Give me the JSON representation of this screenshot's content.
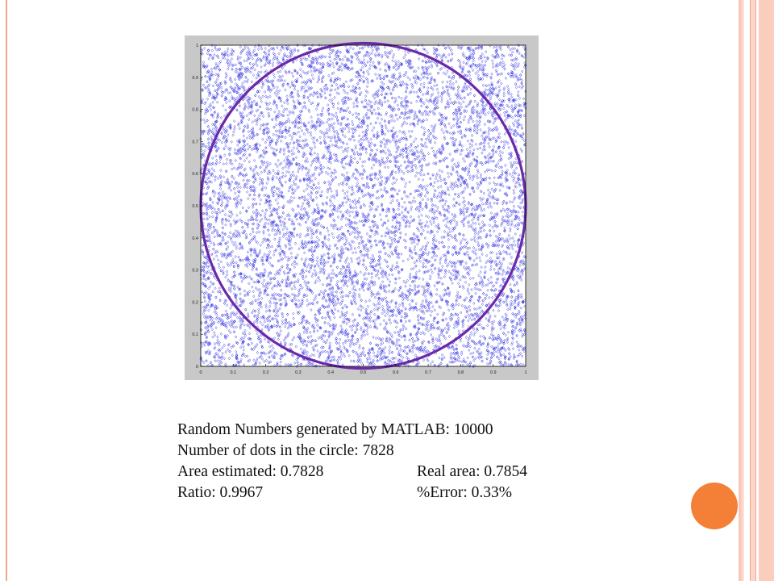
{
  "chart_data": {
    "type": "scatter",
    "title": "",
    "xlabel": "",
    "ylabel": "",
    "xlim": [
      0,
      1
    ],
    "ylim": [
      0,
      1
    ],
    "x_ticks": [
      "0",
      "0.1",
      "0.2",
      "0.3",
      "0.4",
      "0.5",
      "0.6",
      "0.7",
      "0.8",
      "0.9",
      "1"
    ],
    "y_ticks": [
      "0",
      "0.1",
      "0.2",
      "0.3",
      "0.4",
      "0.5",
      "0.6",
      "0.7",
      "0.8",
      "0.9",
      "1"
    ],
    "marker": "diamond",
    "point_count": 10000,
    "point_distribution": "uniform random on [0,1] x [0,1]",
    "point_color": "#2a2ae0",
    "circle": {
      "center": [
        0.5,
        0.5
      ],
      "radius": 0.5,
      "color": "#6a2aa8"
    },
    "plot_background": "#ffffff",
    "figure_background": "#c8c8c8",
    "grid": false
  },
  "stats": {
    "line1": "Random Numbers generated by MATLAB: 10000",
    "line2": "Number of dots in the circle: 7828",
    "line3_left": "Area estimated: 0.7828",
    "line3_right": "Real area: 0.7854",
    "line4_left": "Ratio: 0.9967",
    "line4_right": "%Error: 0.33%"
  },
  "decor": {
    "accent_orange": "#f47f37",
    "border_salmon": "#f4a58a"
  }
}
